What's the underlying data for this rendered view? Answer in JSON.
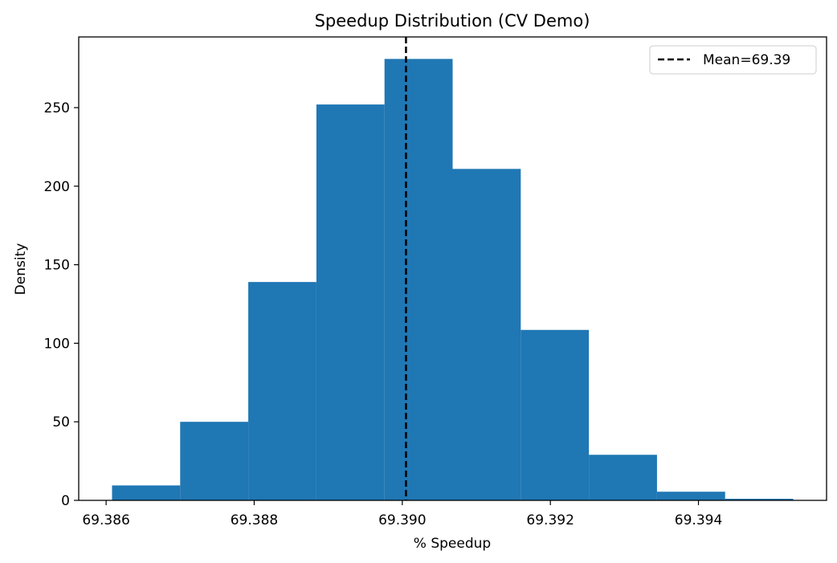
{
  "chart_data": {
    "type": "bar",
    "title": "Speedup Distribution (CV Demo)",
    "xlabel": "% Speedup",
    "ylabel": "Density",
    "bins": [
      {
        "x0": 69.38608,
        "x1": 69.387,
        "value": 9.5
      },
      {
        "x0": 69.387,
        "x1": 69.38792,
        "value": 50
      },
      {
        "x0": 69.38792,
        "x1": 69.38884,
        "value": 139
      },
      {
        "x0": 69.38884,
        "x1": 69.38976,
        "value": 252
      },
      {
        "x0": 69.38976,
        "x1": 69.39068,
        "value": 281
      },
      {
        "x0": 69.39068,
        "x1": 69.3916,
        "value": 211
      },
      {
        "x0": 69.3916,
        "x1": 69.39252,
        "value": 108.5
      },
      {
        "x0": 69.39252,
        "x1": 69.39344,
        "value": 29
      },
      {
        "x0": 69.39344,
        "x1": 69.39436,
        "value": 5.5
      },
      {
        "x0": 69.39436,
        "x1": 69.39528,
        "value": 1
      }
    ],
    "mean_line": {
      "value": 69.39005,
      "label": "Mean=69.39",
      "color": "#000000",
      "style": "dashed"
    },
    "bar_color": "#1f77b4",
    "xlim": [
      69.38563,
      69.39573
    ],
    "ylim": [
      0,
      295
    ],
    "xticks": [
      {
        "value": 69.386,
        "label": "69.386"
      },
      {
        "value": 69.388,
        "label": "69.388"
      },
      {
        "value": 69.39,
        "label": "69.390"
      },
      {
        "value": 69.392,
        "label": "69.392"
      },
      {
        "value": 69.394,
        "label": "69.394"
      }
    ],
    "yticks": [
      {
        "value": 0,
        "label": "0"
      },
      {
        "value": 50,
        "label": "50"
      },
      {
        "value": 100,
        "label": "100"
      },
      {
        "value": 150,
        "label": "150"
      },
      {
        "value": 200,
        "label": "200"
      },
      {
        "value": 250,
        "label": "250"
      }
    ],
    "legend": {
      "position": "top-right"
    },
    "grid": false
  }
}
